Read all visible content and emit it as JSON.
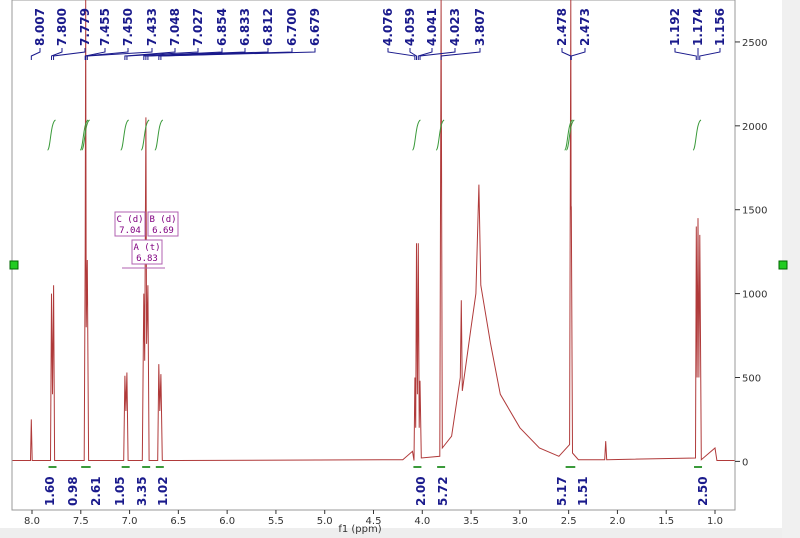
{
  "chart_data": {
    "type": "nmr",
    "x_label": "f1 (ppm)",
    "xlim": [
      8.205,
      0.795
    ],
    "ylim": [
      -260,
      2750
    ],
    "xticks": [
      {
        "value": 8,
        "label": "8.0"
      },
      7.5,
      {
        "value": 7,
        "label": "7.0"
      },
      6.5,
      {
        "value": 6,
        "label": "6.0"
      },
      5.5,
      {
        "value": 5,
        "label": "5.0"
      },
      4.5,
      {
        "value": 4,
        "label": "4.0"
      },
      3.5,
      {
        "value": 3,
        "label": "3.0"
      },
      2.5,
      {
        "value": 2,
        "label": "2.0"
      },
      1.5,
      {
        "value": 1,
        "label": "1.0"
      }
    ],
    "yticks": [
      0,
      500,
      1000,
      1500,
      2000,
      2500
    ],
    "color": "#b03a3a",
    "x": [
      8.2,
      8.015,
      8.007,
      7.998,
      7.81,
      7.8,
      7.79,
      7.779,
      7.768,
      7.465,
      7.455,
      7.45,
      7.445,
      7.433,
      7.42,
      7.06,
      7.048,
      7.038,
      7.027,
      7.015,
      6.87,
      6.854,
      6.845,
      6.833,
      6.825,
      6.812,
      6.8,
      6.712,
      6.7,
      6.69,
      6.679,
      6.665,
      6.5,
      4.2,
      4.1,
      4.085,
      4.076,
      4.068,
      4.059,
      4.05,
      4.041,
      4.032,
      4.023,
      4.01,
      3.82,
      3.807,
      3.795,
      3.7,
      3.61,
      3.6,
      3.59,
      3.5,
      3.45,
      3.42,
      3.4,
      3.3,
      3.2,
      3.0,
      2.8,
      2.6,
      2.49,
      2.478,
      2.475,
      2.473,
      2.46,
      2.4,
      2.13,
      2.12,
      2.11,
      1.2,
      1.192,
      1.183,
      1.174,
      1.165,
      1.156,
      1.14,
      1.0,
      0.98,
      0.8
    ],
    "values": [
      5,
      5,
      250,
      5,
      5,
      1000,
      400,
      1050,
      5,
      5,
      1250,
      2750,
      800,
      1200,
      5,
      5,
      510,
      300,
      530,
      5,
      5,
      1000,
      600,
      2050,
      700,
      1050,
      5,
      5,
      580,
      300,
      520,
      5,
      5,
      10,
      60,
      5,
      500,
      200,
      1300,
      400,
      1300,
      200,
      480,
      20,
      30,
      2750,
      80,
      150,
      500,
      960,
      420,
      800,
      1000,
      1650,
      1050,
      700,
      400,
      200,
      80,
      30,
      100,
      2750,
      1500,
      1520,
      50,
      10,
      10,
      120,
      10,
      20,
      1400,
      500,
      1450,
      500,
      1350,
      10,
      80,
      5,
      5
    ],
    "peaks": [
      {
        "value": 8.007,
        "label": "8.007"
      },
      {
        "value": 7.8,
        "label": "7.800"
      },
      {
        "value": 7.779,
        "label": "7.779"
      },
      {
        "value": 7.455,
        "label": "7.455"
      },
      {
        "value": 7.45,
        "label": "7.450"
      },
      {
        "value": 7.433,
        "label": "7.433"
      },
      {
        "value": 7.048,
        "label": "7.048"
      },
      {
        "value": 7.027,
        "label": "7.027"
      },
      {
        "value": 6.854,
        "label": "6.854"
      },
      {
        "value": 6.833,
        "label": "6.833"
      },
      {
        "value": 6.812,
        "label": "6.812"
      },
      {
        "value": 6.7,
        "label": "6.700"
      },
      {
        "value": 6.679,
        "label": "6.679"
      },
      {
        "value": 4.076,
        "label": "4.076"
      },
      {
        "value": 4.059,
        "label": "4.059"
      },
      {
        "value": 4.041,
        "label": "4.041"
      },
      {
        "value": 4.023,
        "label": "4.023"
      },
      {
        "value": 3.807,
        "label": "3.807"
      },
      {
        "value": 2.478,
        "label": "2.478"
      },
      {
        "value": 2.473,
        "label": "2.473"
      },
      {
        "value": 1.192,
        "label": "1.192"
      },
      {
        "value": 1.174,
        "label": "1.174"
      },
      {
        "value": 1.156,
        "label": "1.156"
      }
    ],
    "integrals": [
      {
        "ppm": 7.79,
        "label": "1.60"
      },
      {
        "ppm": 7.455,
        "label": "0.98"
      },
      {
        "ppm": 7.44,
        "label": "2.61"
      },
      {
        "ppm": 7.04,
        "label": "1.05"
      },
      {
        "ppm": 6.83,
        "label": "3.35"
      },
      {
        "ppm": 6.69,
        "label": "1.02"
      },
      {
        "ppm": 4.05,
        "label": "2.00"
      },
      {
        "ppm": 3.807,
        "label": "5.72"
      },
      {
        "ppm": 2.49,
        "label": "5.17"
      },
      {
        "ppm": 2.473,
        "label": "1.51"
      },
      {
        "ppm": 1.174,
        "label": "2.50"
      }
    ],
    "multiplets": [
      {
        "name": "C (d)",
        "shift": 7.04
      },
      {
        "name": "B (d)",
        "shift": 6.69
      },
      {
        "name": "A (t)",
        "shift": 6.83
      }
    ]
  }
}
